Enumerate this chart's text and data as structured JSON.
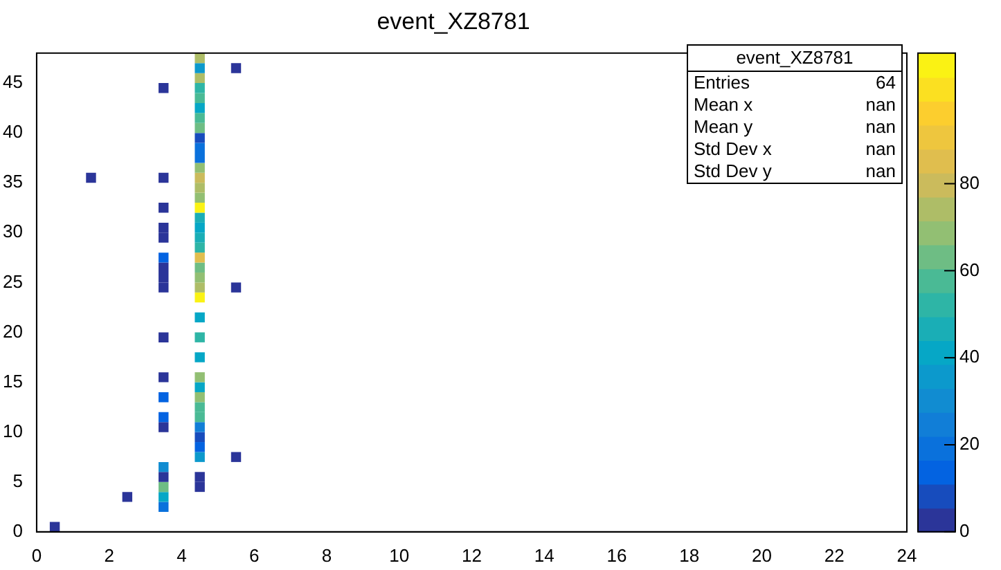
{
  "chart_data": {
    "type": "scatter",
    "title": "event_XZ8781",
    "annotations": [
      "event_XZ8781",
      "Entries",
      "64",
      "Mean x",
      "nan",
      "Mean y",
      "nan",
      "Std Dev x",
      "nan",
      "Std Dev y",
      "nan"
    ],
    "marker": "square",
    "xlim": [
      0,
      24
    ],
    "xticks": [
      0,
      2,
      4,
      6,
      8,
      10,
      12,
      14,
      16,
      18,
      20,
      22,
      24
    ],
    "ylim": [
      0,
      48
    ],
    "yticks": [
      0,
      5,
      10,
      15,
      20,
      25,
      30,
      35,
      40,
      45
    ],
    "clim": [
      0,
      110
    ],
    "cticks": [
      0,
      20,
      40,
      60,
      80
    ],
    "x": [
      0.5,
      3.5,
      2.5,
      3.5,
      3.5,
      4.5,
      3.5,
      4.5,
      3.5,
      4.5,
      5.5,
      4.5,
      4.5,
      3.5,
      4.5,
      3.5,
      4.5,
      4.5,
      3.5,
      4.5,
      4.5,
      3.5,
      4.5,
      4.5,
      3.5,
      4.5,
      4.5,
      4.5,
      3.5,
      4.5,
      5.5,
      3.5,
      4.5,
      3.5,
      4.5,
      3.5,
      4.5,
      4.5,
      3.5,
      4.5,
      3.5,
      4.5,
      4.5,
      3.5,
      4.5,
      4.5,
      4.5,
      1.5,
      3.5,
      4.5,
      4.5,
      4.5,
      4.5,
      4.5,
      4.5,
      4.5,
      4.5,
      4.5,
      3.5,
      4.5,
      4.5,
      4.5,
      5.5,
      4.5
    ],
    "values": [
      0.5,
      2.5,
      3.5,
      3.5,
      4.5,
      4.5,
      5.5,
      5.5,
      6.5,
      7.5,
      7.5,
      8.5,
      9.5,
      10.5,
      10.5,
      11.5,
      11.5,
      12.5,
      13.5,
      13.5,
      14.5,
      15.5,
      15.5,
      17.5,
      19.5,
      19.5,
      21.5,
      23.5,
      24.5,
      24.5,
      24.5,
      25.5,
      25.5,
      26.5,
      26.5,
      27.5,
      27.5,
      28.5,
      29.5,
      29.5,
      30.5,
      30.5,
      31.5,
      32.5,
      32.5,
      33.5,
      34.5,
      35.5,
      35.5,
      35.5,
      36.5,
      37.5,
      38.5,
      39.5,
      40.5,
      41.5,
      42.5,
      43.5,
      44.5,
      44.5,
      45.5,
      46.5,
      46.5,
      47.5
    ],
    "cvalues": [
      5,
      20,
      5,
      40,
      65,
      5,
      5,
      5,
      30,
      35,
      5,
      15,
      8,
      5,
      25,
      15,
      60,
      58,
      15,
      68,
      40,
      5,
      68,
      40,
      5,
      52,
      42,
      105,
      5,
      75,
      5,
      5,
      70,
      5,
      65,
      15,
      85,
      50,
      5,
      45,
      5,
      40,
      45,
      5,
      105,
      70,
      75,
      5,
      5,
      78,
      70,
      20,
      18,
      8,
      62,
      58,
      40,
      55,
      5,
      50,
      75,
      38,
      5,
      75
    ]
  }
}
